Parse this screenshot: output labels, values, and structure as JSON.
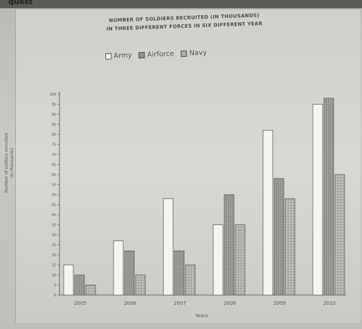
{
  "page": {
    "top_cut_text": "quest"
  },
  "chart_data": {
    "type": "bar",
    "title_lines": [
      "NUMBER OF SOLDIERS RECRUITED (IN THOUSANDS)",
      "IN THREE DIFFERENT FORCES IN SIX DIFFERENT YEAR"
    ],
    "xlabel": "Years",
    "ylabel_lines": [
      "Number of soldiers recruited",
      "(in thousands)"
    ],
    "categories": [
      "2005",
      "2006",
      "2007",
      "2008",
      "2009",
      "2010"
    ],
    "ylim": [
      0,
      100
    ],
    "ytick_step": 5,
    "yticks": [
      0,
      5,
      10,
      15,
      20,
      25,
      30,
      35,
      40,
      45,
      50,
      55,
      60,
      65,
      70,
      75,
      80,
      85,
      90,
      95,
      100
    ],
    "grid": false,
    "legend_position": "top",
    "series": [
      {
        "name": "Army",
        "values": [
          15,
          27,
          48,
          35,
          82,
          95
        ],
        "color": "#f4f4f1",
        "pattern": "plain"
      },
      {
        "name": "Airforce",
        "values": [
          10,
          22,
          22,
          50,
          58,
          98
        ],
        "color": "#9d9d9a",
        "pattern": "dense"
      },
      {
        "name": "Navy",
        "values": [
          5,
          10,
          15,
          35,
          48,
          60
        ],
        "color": "#b5b5b2",
        "pattern": "grid"
      }
    ]
  }
}
